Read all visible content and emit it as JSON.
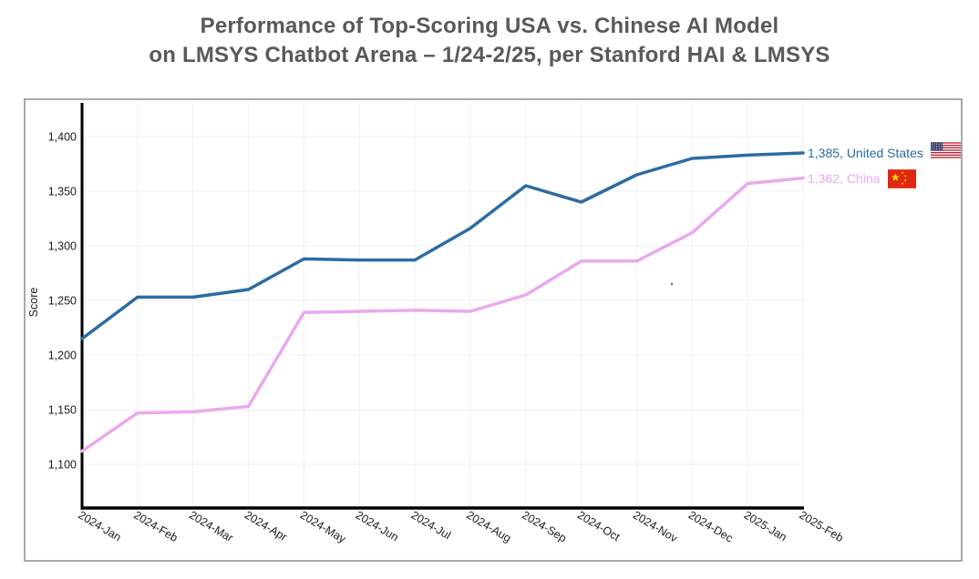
{
  "title": {
    "line1": "Performance of Top-Scoring USA vs. Chinese AI Model",
    "line2": "on LMSYS Chatbot Arena – 1/24-2/25, per Stanford HAI & LMSYS",
    "color": "#58595b"
  },
  "chart_data": {
    "type": "line",
    "x_categories": [
      "2024-Jan",
      "2024-Feb",
      "2024-Mar",
      "2024-Apr",
      "2024-May",
      "2024-Jun",
      "2024-Jul",
      "2024-Aug",
      "2024-Sep",
      "2024-Oct",
      "2024-Nov",
      "2024-Dec",
      "2025-Jan",
      "2025-Feb"
    ],
    "series": [
      {
        "name": "United States",
        "color": "#2c6ca3",
        "end_label": "1,385, United States",
        "flag_icon": "us-flag",
        "values": [
          1215,
          1253,
          1253,
          1260,
          1288,
          1287,
          1287,
          1316,
          1355,
          1340,
          1365,
          1380,
          1383,
          1385
        ]
      },
      {
        "name": "China",
        "color": "#e9a9ee",
        "end_label": "1,362, China",
        "flag_icon": "china-flag",
        "values": [
          1112,
          1147,
          1148,
          1153,
          1239,
          1240,
          1241,
          1240,
          1255,
          1286,
          1286,
          1312,
          1357,
          1362
        ]
      }
    ],
    "xlabel": "",
    "ylabel": "Score",
    "yticks": [
      {
        "value": 1100,
        "label": "1,100"
      },
      {
        "value": 1150,
        "label": "1,150"
      },
      {
        "value": 1200,
        "label": "1,200"
      },
      {
        "value": 1250,
        "label": "1,250"
      },
      {
        "value": 1300,
        "label": "1,300"
      },
      {
        "value": 1350,
        "label": "1,350"
      },
      {
        "value": 1400,
        "label": "1,400"
      }
    ],
    "ylim": [
      1060,
      1430
    ],
    "grid": true,
    "gridline_color": "#f5f2f3",
    "axis_color": "#000000",
    "legend_position": "end-of-line labels at right with country flags"
  }
}
